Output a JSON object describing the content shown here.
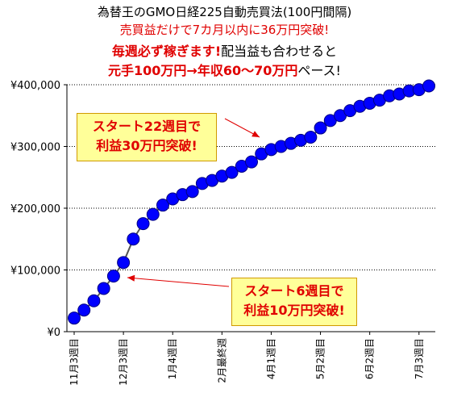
{
  "title_lines": {
    "line1": "為替王のGMO日経225自動売買法(100円間隔)",
    "line2": "売買益だけで7カ月以内に36万円突破!",
    "line3_red": "毎週必ず稼ぎます!",
    "line3_black": "配当益も合わせると",
    "line4_red": "元手100万円→年収60〜70万円",
    "line4_black": "ペース!"
  },
  "callouts": {
    "c1_line1": "スタート22週目で",
    "c1_line2": "利益30万円突破!",
    "c2_line1": "スタート6週目で",
    "c2_line2": "利益10万円突破!"
  },
  "colors": {
    "marker": "#0000ff",
    "line": "#555555",
    "text_red": "#e00000",
    "callout_bg": "#ffff99"
  },
  "chart_data": {
    "type": "line",
    "y_tick_labels": [
      "¥0",
      "¥100,000",
      "¥200,000",
      "¥300,000",
      "¥400,000"
    ],
    "y_ticks": [
      0,
      100000,
      200000,
      300000,
      400000
    ],
    "ylim": [
      0,
      400000
    ],
    "x_tick_labels": [
      "11月3週目",
      "12月3週目",
      "1月4週目",
      "2月最終週",
      "4月1週目",
      "5月2週目",
      "6月2週目",
      "7月3週目"
    ],
    "x_tick_indices": [
      0,
      5,
      10,
      15,
      20,
      25,
      30,
      35
    ],
    "values": [
      22000,
      35000,
      50000,
      70000,
      90000,
      112000,
      150000,
      175000,
      190000,
      205000,
      215000,
      222000,
      227000,
      240000,
      245000,
      252000,
      258000,
      268000,
      275000,
      288000,
      295000,
      300000,
      305000,
      310000,
      315000,
      330000,
      342000,
      350000,
      358000,
      365000,
      370000,
      375000,
      382000,
      385000,
      390000,
      392000,
      398000
    ]
  }
}
